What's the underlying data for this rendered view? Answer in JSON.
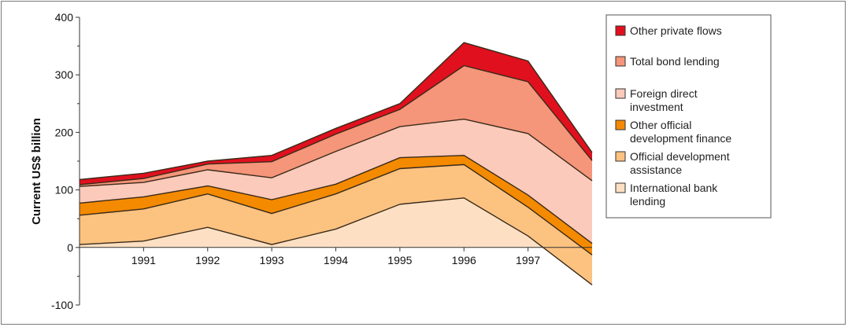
{
  "chart_data": {
    "type": "area",
    "stacked": true,
    "title": "",
    "xlabel": "",
    "ylabel": "Current US$ billion",
    "ylim": [
      -100,
      400
    ],
    "yticks": [
      400,
      300,
      200,
      100,
      0,
      -100
    ],
    "ytick_labels": [
      "400",
      "300",
      "200",
      "100",
      "0",
      "-100"
    ],
    "x": [
      1990,
      1991,
      1992,
      1993,
      1994,
      1995,
      1996,
      1997,
      1998
    ],
    "xlim": [
      1990,
      1998
    ],
    "xtick_labels": [
      "1991",
      "1992",
      "1993",
      "1994",
      "1995",
      "1996",
      "1997"
    ],
    "xtick_values": [
      1991,
      1992,
      1993,
      1994,
      1995,
      1996,
      1997
    ],
    "legend_position": "right",
    "series": [
      {
        "name": "International bank lending",
        "color": "#fde0c3",
        "values": [
          5,
          11,
          35,
          5,
          32,
          75,
          86,
          20,
          -65
        ]
      },
      {
        "name": "Official development assistance",
        "color": "#fcc280",
        "values": [
          51,
          56,
          58,
          54,
          61,
          62,
          58,
          50,
          52
        ]
      },
      {
        "name": "Other official development finance",
        "color": "#f48a00",
        "values": [
          21,
          21,
          14,
          24,
          17,
          19,
          16,
          21,
          20
        ]
      },
      {
        "name": "Foreign direct investment",
        "color": "#fbcabb",
        "values": [
          29,
          25,
          28,
          38,
          57,
          54,
          63,
          107,
          109
        ]
      },
      {
        "name": "Total bond lending",
        "color": "#f59579",
        "values": [
          3,
          7,
          10,
          28,
          30,
          30,
          93,
          90,
          35
        ]
      },
      {
        "name": "Other private flows",
        "color": "#e0101e",
        "values": [
          9,
          9,
          5,
          11,
          10,
          10,
          40,
          36,
          14
        ]
      }
    ]
  }
}
